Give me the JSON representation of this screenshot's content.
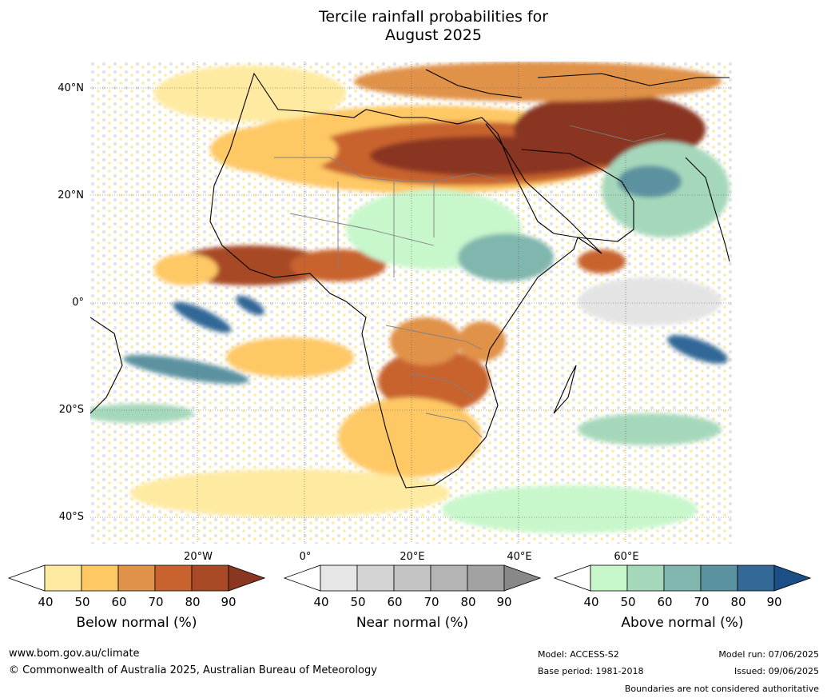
{
  "title_line1": "Tercile rainfall probabilities for",
  "title_line2": "August 2025",
  "lat_labels": [
    "40°N",
    "20°N",
    "0°",
    "20°S",
    "40°S"
  ],
  "lon_labels": [
    "20°W",
    "0°",
    "20°E",
    "40°E",
    "60°E"
  ],
  "legend": {
    "below": {
      "label": "Below normal (%)",
      "ticks": [
        "40",
        "50",
        "60",
        "70",
        "80",
        "90"
      ],
      "colors": [
        "#ffffff",
        "#feeaa0",
        "#fec865",
        "#e0924a",
        "#c8632f",
        "#a84a26",
        "#8a3620"
      ]
    },
    "near": {
      "label": "Near normal (%)",
      "ticks": [
        "40",
        "50",
        "60",
        "70",
        "80",
        "90"
      ],
      "colors": [
        "#ffffff",
        "#e6e6e6",
        "#d4d4d4",
        "#c4c4c4",
        "#b4b4b4",
        "#a2a2a2",
        "#888888"
      ]
    },
    "above": {
      "label": "Above normal (%)",
      "ticks": [
        "40",
        "50",
        "60",
        "70",
        "80",
        "90"
      ],
      "colors": [
        "#ffffff",
        "#c8f7cc",
        "#a5d8bb",
        "#80b6ad",
        "#5b92a0",
        "#336897",
        "#1c4f86"
      ]
    }
  },
  "footer": {
    "website": "www.bom.gov.au/climate",
    "copyright": "© Commonwealth of Australia 2025, Australian Bureau of Meteorology",
    "model": "Model: ACCESS-S2",
    "base_period": "Base period: 1981-2018",
    "model_run": "Model run: 07/06/2025",
    "issued": "Issued: 09/06/2025",
    "boundaries_note": "Boundaries are not considered authoritative"
  }
}
